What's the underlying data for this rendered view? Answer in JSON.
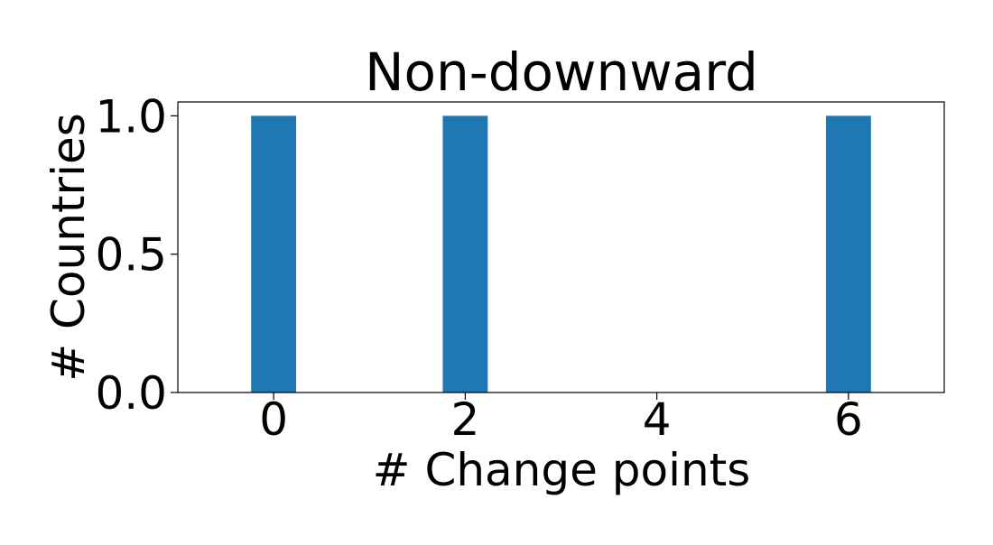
{
  "chart_data": {
    "type": "bar",
    "title": "Non-downward",
    "xlabel": "# Change points",
    "ylabel": "# Countries",
    "x": [
      0,
      2,
      6
    ],
    "values": [
      1,
      1,
      1
    ],
    "bar_width": 0.47,
    "xlim": [
      -1,
      7
    ],
    "ylim": [
      0,
      1.05
    ],
    "xticks": [
      0,
      2,
      4,
      6
    ],
    "xtick_labels": [
      "0",
      "2",
      "4",
      "6"
    ],
    "yticks": [
      0.0,
      0.5,
      1.0
    ],
    "ytick_labels": [
      "0.0",
      "0.5",
      "1.0"
    ],
    "bar_color": "#1f77b4",
    "grid": false,
    "legend": "none"
  }
}
